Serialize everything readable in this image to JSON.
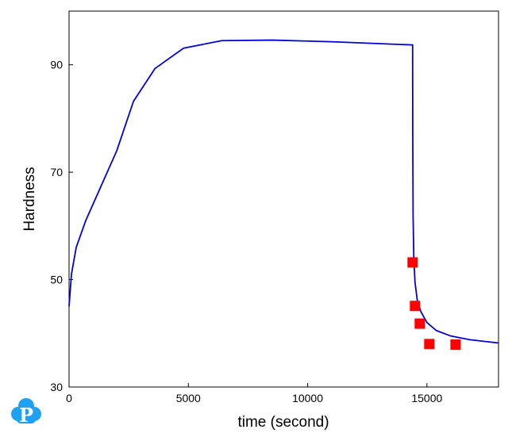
{
  "chart_data": {
    "type": "line",
    "title": "",
    "xlabel": "time (second)",
    "ylabel": "Hardness",
    "xlim": [
      0,
      18000
    ],
    "ylim": [
      30,
      100
    ],
    "xticks": [
      0,
      5000,
      10000,
      15000
    ],
    "yticks": [
      30,
      50,
      70,
      90
    ],
    "grid": false,
    "legend": "none",
    "series": [
      {
        "kind": "line",
        "color": "#0000dd",
        "x": [
          0,
          100,
          300,
          700,
          1200,
          2000,
          2700,
          3600,
          4800,
          6400,
          8500,
          11000,
          14400,
          14405,
          14420,
          14450,
          14500,
          14600,
          14750,
          15000,
          15400,
          16000,
          16800,
          18000
        ],
        "y": [
          45,
          51,
          56,
          61,
          66,
          74,
          83.2,
          89.3,
          93.1,
          94.5,
          94.6,
          94.3,
          93.7,
          78,
          62,
          54,
          49.5,
          46,
          44,
          42,
          40.5,
          39.5,
          38.8,
          38.2
        ]
      },
      {
        "kind": "scatter",
        "color": "#ff0000",
        "marker": "square",
        "x": [
          14400,
          14500,
          14700,
          15100,
          16200
        ],
        "y": [
          53.2,
          45.1,
          41.8,
          38,
          37.9
        ]
      }
    ]
  },
  "logo": {
    "letter": "P",
    "color": "#1ea1f2"
  }
}
